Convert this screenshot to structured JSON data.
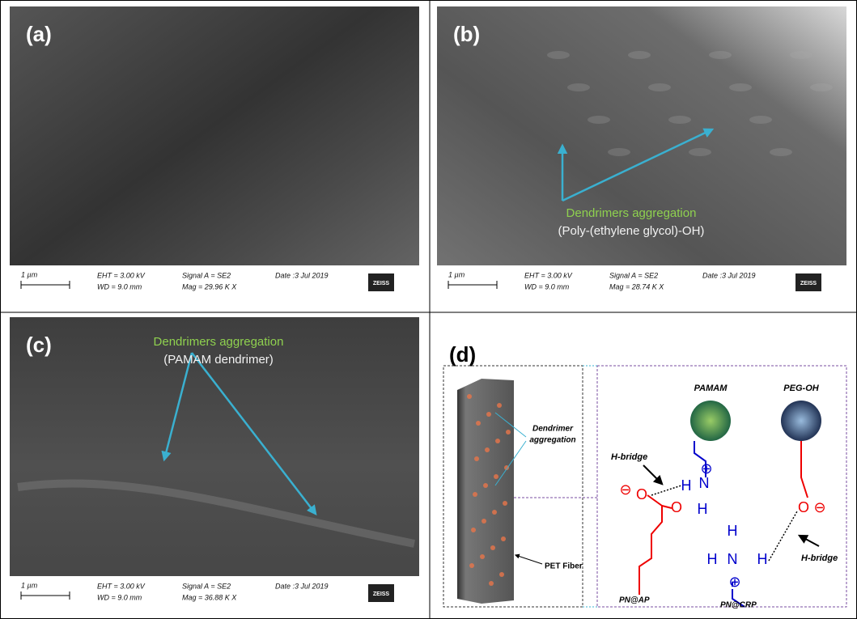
{
  "panels": [
    {
      "label": "(a)",
      "scale": "1 µm",
      "eht": "EHT = 3.00 kV",
      "wd": "WD = 9.0 mm",
      "signal": "Signal A = SE2",
      "mag": "Mag = 29.96 K X",
      "date": "Date :3 Jul 2019",
      "brand": "ZEISS"
    },
    {
      "label": "(b)",
      "scale": "1 µm",
      "eht": "EHT = 3.00 kV",
      "wd": "WD = 9.0 mm",
      "signal": "Signal A = SE2",
      "mag": "Mag = 28.74 K X",
      "date": "Date :3 Jul 2019",
      "brand": "ZEISS",
      "annotation": [
        "Dendrimers aggregation",
        "(Poly-(ethylene glycol)-OH)"
      ]
    },
    {
      "label": "(c)",
      "scale": "1 µm",
      "eht": "EHT = 3.00 kV",
      "wd": "WD = 9.0 mm",
      "signal": "Signal A = SE2",
      "mag": "Mag = 36.88 K X",
      "date": "Date :3 Jul 2019",
      "brand": "ZEISS",
      "annotation": [
        "Dendrimers aggregation",
        "(PAMAM dendrimer)"
      ]
    }
  ],
  "diagram": {
    "label": "(d)",
    "fiber_labels": [
      "Dendrimer",
      "aggregation"
    ],
    "pet": "PET Fiber",
    "pamam": "PAMAM",
    "peg": "PEG-OH",
    "h_bridge_left": "H-bridge",
    "h_bridge_right": "H-bridge",
    "pn_ap": "PN@AP",
    "pn_crp": "PN@CRP",
    "symbols": [
      "⊖",
      "O",
      "O",
      "H",
      "⊕",
      "N",
      "H",
      "H",
      "H",
      "N",
      "H",
      "⊕",
      "O",
      "⊖"
    ]
  }
}
